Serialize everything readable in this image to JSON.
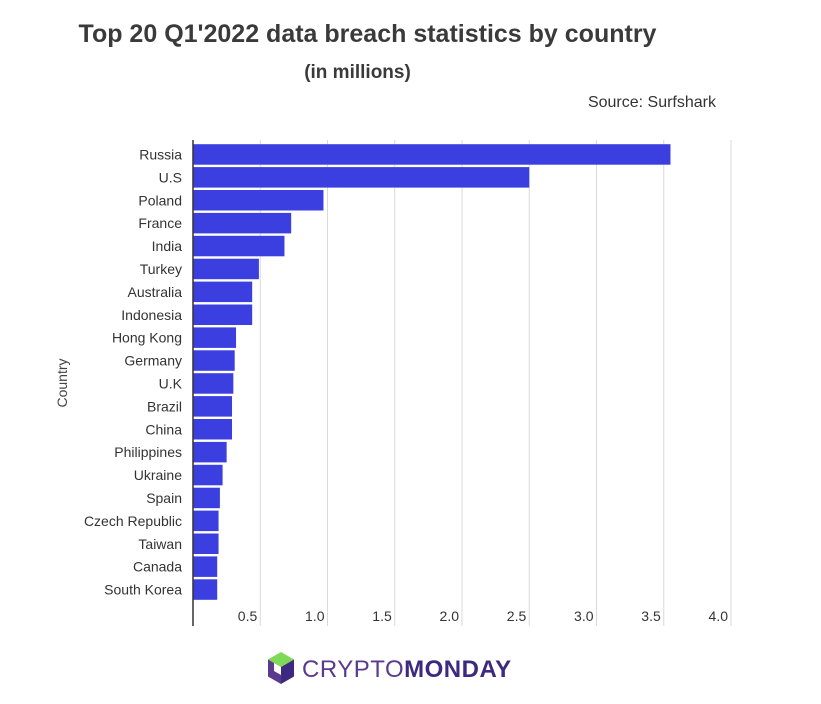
{
  "header": {
    "title": "Top 20 Q1'2022 data breach statistics by country",
    "subtitle": "(in millions)",
    "source": "Source: Surfshark"
  },
  "logo": {
    "brand_light": "CRYPTO",
    "brand_bold": "MONDAY",
    "icon": "cube-logo-icon"
  },
  "colors": {
    "bar": "#3b3fe0",
    "grid": "#d9d9d9",
    "axis": "#333333",
    "logo_purple": "#5b3a8e",
    "logo_green": "#7ed957"
  },
  "chart_data": {
    "type": "bar",
    "orientation": "horizontal",
    "title": "Top 20 Q1'2022 data breach statistics by country",
    "subtitle": "(in millions)",
    "ylabel": "Country",
    "xlim": [
      0,
      4.0
    ],
    "xticks": [
      0.5,
      1.0,
      1.5,
      2.0,
      2.5,
      3.0,
      3.5,
      4.0
    ],
    "xtick_labels": [
      "0.5",
      "1.0",
      "1.5",
      "2.0",
      "2.5",
      "3.0",
      "3.5",
      "4.0"
    ],
    "grid": true,
    "categories": [
      "Russia",
      "U.S",
      "Poland",
      "France",
      "India",
      "Turkey",
      "Australia",
      "Indonesia",
      "Hong Kong",
      "Germany",
      "U.K",
      "Brazil",
      "China",
      "Philippines",
      "Ukraine",
      "Spain",
      "Czech Republic",
      "Taiwan",
      "Canada",
      "South Korea"
    ],
    "values": [
      3.55,
      2.5,
      0.97,
      0.73,
      0.68,
      0.49,
      0.44,
      0.44,
      0.32,
      0.31,
      0.3,
      0.29,
      0.29,
      0.25,
      0.22,
      0.2,
      0.19,
      0.19,
      0.18,
      0.18
    ]
  }
}
